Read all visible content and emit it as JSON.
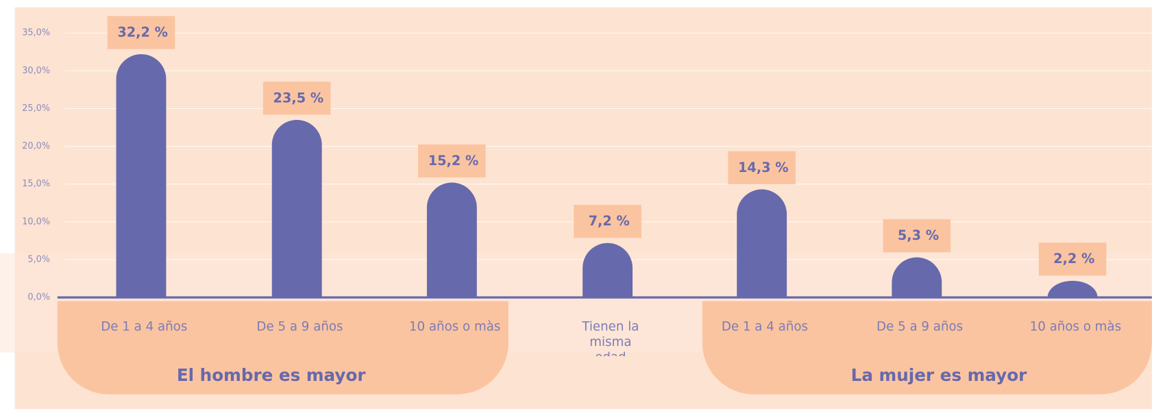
{
  "chart_data": {
    "type": "bar",
    "categories": [
      "De 1 a 4 años",
      "De 5 a 9 años",
      "10 años o màs",
      "Tienen la misma edad",
      "De 1 a 4 años",
      "De 5 a 9 años",
      "10 años o màs"
    ],
    "values": [
      32.2,
      23.5,
      15.2,
      7.2,
      14.3,
      5.3,
      2.2
    ],
    "value_labels": [
      "32,2 %",
      "23,5 %",
      "15,2 %",
      "7,2 %",
      "14,3 %",
      "5,3 %",
      "2,2 %"
    ],
    "groups": [
      "El hombre es mayor",
      "La mujer es mayor"
    ],
    "color": "#6669ac",
    "ylim": [
      0,
      35
    ],
    "yticks": [
      {
        "value": 0,
        "label": "0,0%"
      },
      {
        "value": 5,
        "label": "5,0%"
      },
      {
        "value": 10,
        "label": "10,0%"
      },
      {
        "value": 15,
        "label": "15,0%"
      },
      {
        "value": 20,
        "label": "20,0%"
      },
      {
        "value": 25,
        "label": "25,0%"
      },
      {
        "value": 30,
        "label": "30,0%"
      },
      {
        "value": 35,
        "label": "35,0%"
      }
    ],
    "grid": true
  }
}
